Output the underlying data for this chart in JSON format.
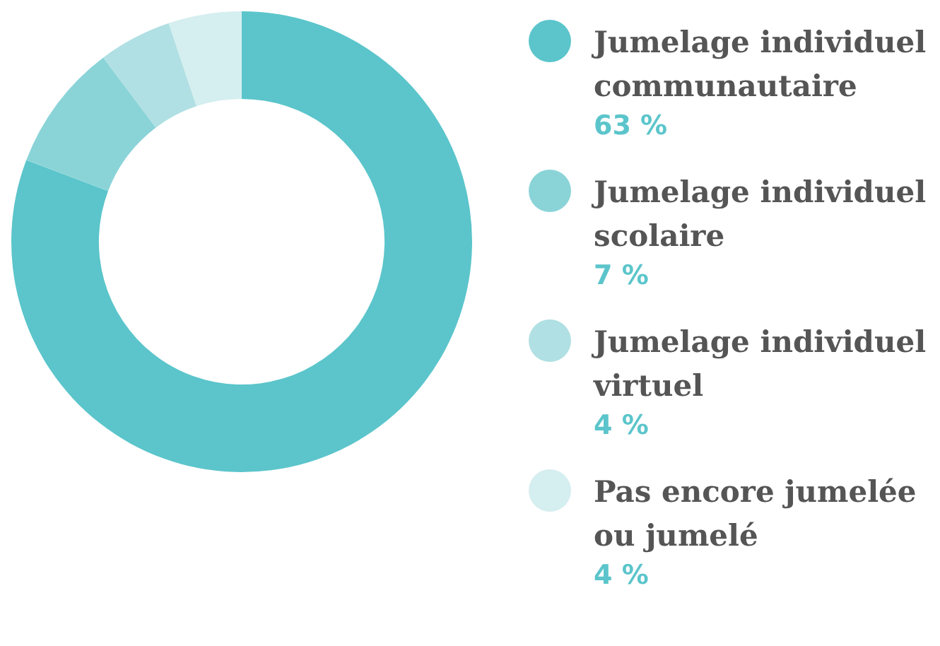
{
  "chart_data": {
    "type": "donut",
    "categories": [
      "Jumelage individuel communautaire",
      "Jumelage individuel scolaire",
      "Jumelage individuel virtuel",
      "Pas encore jumelée ou jumelé"
    ],
    "values": [
      63,
      7,
      4,
      4
    ],
    "colors": [
      "#5bc5cb",
      "#8ad4d8",
      "#b0e0e3",
      "#d5eef0"
    ],
    "value_labels": [
      "63 %",
      "7 %",
      "4 %",
      "4 %"
    ],
    "legend": "right"
  }
}
